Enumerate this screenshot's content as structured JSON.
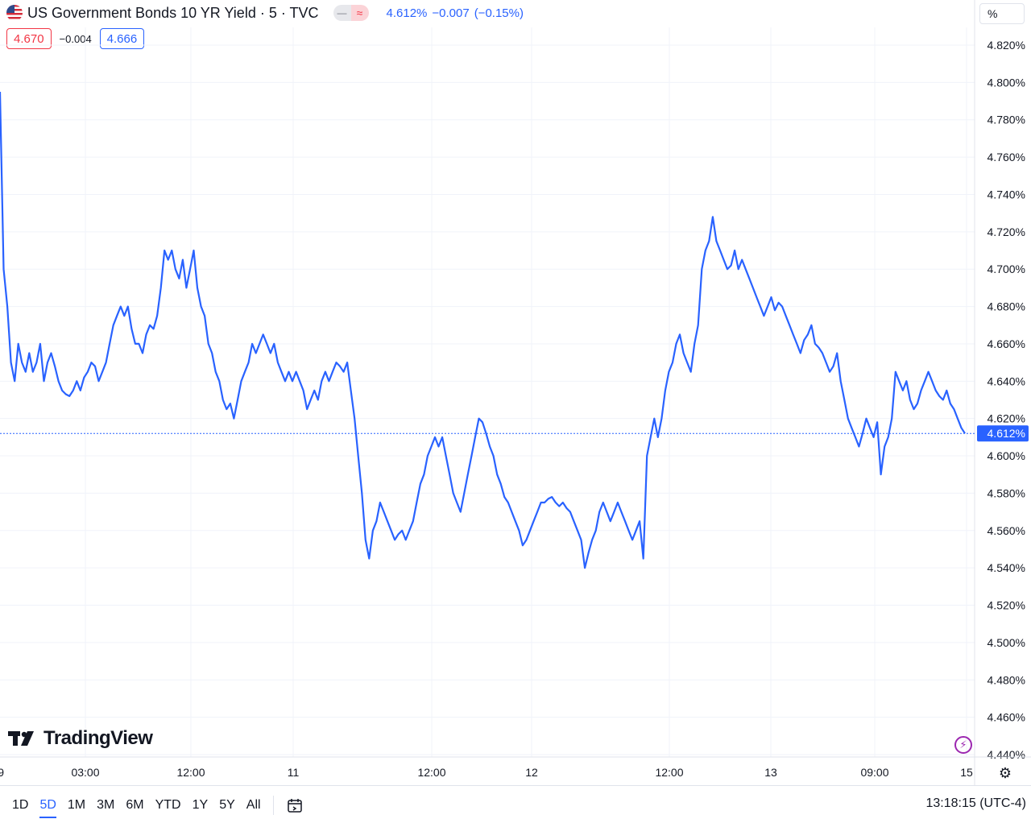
{
  "header": {
    "title": "US Government Bonds 10 YR Yield · 5 · TVC",
    "pill_gray": "—",
    "pill_red": "≈",
    "last": "4.612%",
    "change": "−0.007",
    "change_pct": "(−0.15%)",
    "bid": "4.670",
    "spread": "−0.004",
    "ask": "4.666"
  },
  "colors": {
    "line": "#2962ff",
    "bid": "#f23645",
    "ask": "#2962ff",
    "grid": "#f0f3fa"
  },
  "unit": "%",
  "brand": "TradingView",
  "bottom": {
    "ranges": [
      "1D",
      "5D",
      "1M",
      "3M",
      "6M",
      "YTD",
      "1Y",
      "5Y",
      "All"
    ],
    "active_range": "5D",
    "clock": "13:18:15 (UTC-4)"
  },
  "icons": [
    "us-flag-icon",
    "calendar-range-icon",
    "lightning-icon",
    "settings-icon"
  ],
  "chart_data": {
    "type": "line",
    "xlabel": "",
    "ylabel": "",
    "y_unit": "%",
    "ylim": [
      4.44,
      4.82
    ],
    "y_ticks": [
      "4.820%",
      "4.800%",
      "4.780%",
      "4.760%",
      "4.740%",
      "4.720%",
      "4.700%",
      "4.680%",
      "4.660%",
      "4.640%",
      "4.620%",
      "4.600%",
      "4.580%",
      "4.560%",
      "4.540%",
      "4.520%",
      "4.500%",
      "4.480%",
      "4.460%",
      "4.440%"
    ],
    "x_ticks": [
      "9",
      "03:00",
      "12:00",
      "11",
      "12:00",
      "12",
      "12:00",
      "13",
      "09:00",
      "15"
    ],
    "current_value": 4.612,
    "current_label": "4.612%",
    "grid": true,
    "series": [
      {
        "values": [
          4.795,
          4.7,
          4.68,
          4.65,
          4.64,
          4.66,
          4.65,
          4.645,
          4.655,
          4.645,
          4.65,
          4.66,
          4.64,
          4.65,
          4.655,
          4.648,
          4.64,
          4.635,
          4.633,
          4.632,
          4.635,
          4.64,
          4.635,
          4.642,
          4.645,
          4.65,
          4.648,
          4.64,
          4.645,
          4.65,
          4.66,
          4.67,
          4.675,
          4.68,
          4.675,
          4.68,
          4.668,
          4.66,
          4.66,
          4.655,
          4.665,
          4.67,
          4.668,
          4.675,
          4.69,
          4.71,
          4.705,
          4.71,
          4.7,
          4.695,
          4.705,
          4.69,
          4.7,
          4.71,
          4.69,
          4.68,
          4.675,
          4.66,
          4.655,
          4.645,
          4.64,
          4.63,
          4.625,
          4.628,
          4.62,
          4.63,
          4.64,
          4.645,
          4.65,
          4.66,
          4.655,
          4.66,
          4.665,
          4.66,
          4.655,
          4.66,
          4.65,
          4.645,
          4.64,
          4.645,
          4.64,
          4.645,
          4.64,
          4.635,
          4.625,
          4.63,
          4.635,
          4.63,
          4.64,
          4.645,
          4.64,
          4.645,
          4.65,
          4.648,
          4.645,
          4.65,
          4.635,
          4.62,
          4.6,
          4.58,
          4.555,
          4.545,
          4.56,
          4.565,
          4.575,
          4.57,
          4.565,
          4.56,
          4.555,
          4.558,
          4.56,
          4.555,
          4.56,
          4.565,
          4.575,
          4.585,
          4.59,
          4.6,
          4.605,
          4.61,
          4.605,
          4.61,
          4.6,
          4.59,
          4.58,
          4.575,
          4.57,
          4.58,
          4.59,
          4.6,
          4.61,
          4.62,
          4.618,
          4.612,
          4.605,
          4.6,
          4.59,
          4.585,
          4.578,
          4.575,
          4.57,
          4.565,
          4.56,
          4.552,
          4.555,
          4.56,
          4.565,
          4.57,
          4.575,
          4.575,
          4.577,
          4.578,
          4.575,
          4.573,
          4.575,
          4.572,
          4.57,
          4.565,
          4.56,
          4.555,
          4.54,
          4.548,
          4.555,
          4.56,
          4.57,
          4.575,
          4.57,
          4.565,
          4.57,
          4.575,
          4.57,
          4.565,
          4.56,
          4.555,
          4.56,
          4.565,
          4.545,
          4.6,
          4.61,
          4.62,
          4.61,
          4.62,
          4.635,
          4.645,
          4.65,
          4.66,
          4.665,
          4.655,
          4.65,
          4.645,
          4.66,
          4.67,
          4.7,
          4.71,
          4.715,
          4.728,
          4.715,
          4.71,
          4.705,
          4.7,
          4.702,
          4.71,
          4.7,
          4.705,
          4.7,
          4.695,
          4.69,
          4.685,
          4.68,
          4.675,
          4.68,
          4.685,
          4.678,
          4.682,
          4.68,
          4.675,
          4.67,
          4.665,
          4.66,
          4.655,
          4.662,
          4.665,
          4.67,
          4.66,
          4.658,
          4.655,
          4.65,
          4.645,
          4.648,
          4.655,
          4.64,
          4.63,
          4.62,
          4.615,
          4.61,
          4.605,
          4.612,
          4.62,
          4.615,
          4.61,
          4.618,
          4.59,
          4.605,
          4.61,
          4.62,
          4.645,
          4.64,
          4.635,
          4.64,
          4.63,
          4.625,
          4.628,
          4.635,
          4.64,
          4.645,
          4.64,
          4.635,
          4.632,
          4.63,
          4.635,
          4.628,
          4.625,
          4.62,
          4.615,
          4.612
        ]
      }
    ]
  }
}
